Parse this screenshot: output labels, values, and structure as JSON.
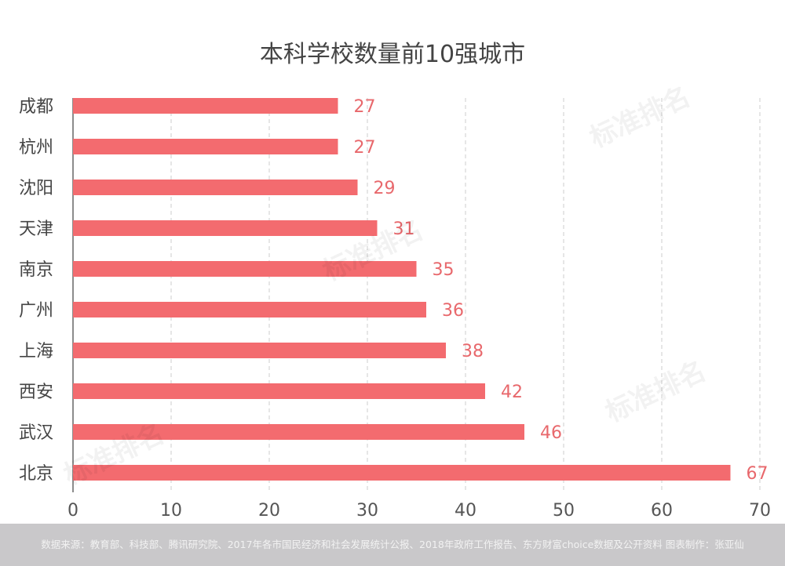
{
  "chart_data": {
    "type": "bar",
    "orientation": "horizontal",
    "title": "本科学校数量前10强城市",
    "categories": [
      "成都",
      "杭州",
      "沈阳",
      "天津",
      "南京",
      "广州",
      "上海",
      "西安",
      "武汉",
      "北京"
    ],
    "values": [
      27,
      27,
      29,
      31,
      35,
      36,
      38,
      42,
      46,
      67
    ],
    "xlim": [
      0,
      70
    ],
    "xticks": [
      0,
      10,
      20,
      30,
      40,
      50,
      60,
      70
    ],
    "xlabel": "",
    "ylabel": "",
    "grid": "vertical dashed",
    "bar_color": "#f36b6f",
    "label_color": "#e8686c"
  },
  "footer": "数据来源：教育部、科技部、腾讯研究院、2017年各市国民经济和社会发展统计公报、2018年政府工作报告、东方财富choice数据及公开资料  图表制作：张亚仙",
  "watermark": "标准排名"
}
